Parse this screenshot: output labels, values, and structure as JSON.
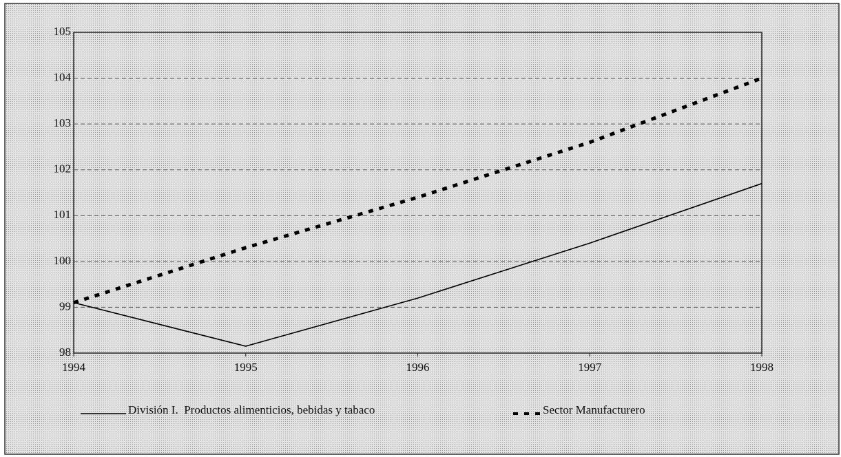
{
  "chart_data": {
    "type": "line",
    "x": [
      1994,
      1995,
      1996,
      1997,
      1998
    ],
    "series": [
      {
        "name": "División I.  Productos alimenticios, bebidas y tabaco",
        "color": "#000000",
        "style": "solid",
        "values": [
          99.1,
          98.15,
          99.2,
          100.4,
          101.7
        ]
      },
      {
        "name": "Sector Manufacturero",
        "color": "#000000",
        "style": "dotted",
        "values": [
          99.1,
          100.3,
          101.4,
          102.6,
          104.0
        ]
      }
    ],
    "xlim": [
      1994,
      1998
    ],
    "xticks": [
      1994,
      1995,
      1996,
      1997,
      1998
    ],
    "ylim": [
      98,
      105
    ],
    "yticks": [
      98,
      99,
      100,
      101,
      102,
      103,
      104,
      105
    ],
    "grid": true,
    "legend": "bottom"
  }
}
